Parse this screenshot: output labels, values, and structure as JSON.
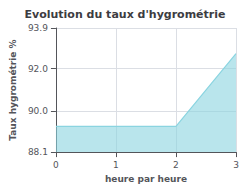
{
  "chart_data": {
    "type": "area",
    "title": "Evolution du taux d'hygrométrie",
    "xlabel": "heure par heure",
    "ylabel": "Taux hygrométrie %",
    "x": [
      0,
      2,
      2,
      3
    ],
    "values": [
      89.3,
      89.3,
      89.3,
      92.7
    ],
    "color": "#8ad4e0",
    "xlim": [
      0,
      3
    ],
    "xticks": [
      0,
      1,
      2,
      3
    ],
    "ylim": [
      88.1,
      93.9
    ],
    "yticks": [
      88.1,
      {
        "value": 90.0,
        "label": "90.0"
      },
      {
        "value": 92.0,
        "label": "92.0"
      },
      93.9
    ],
    "grid": true
  }
}
